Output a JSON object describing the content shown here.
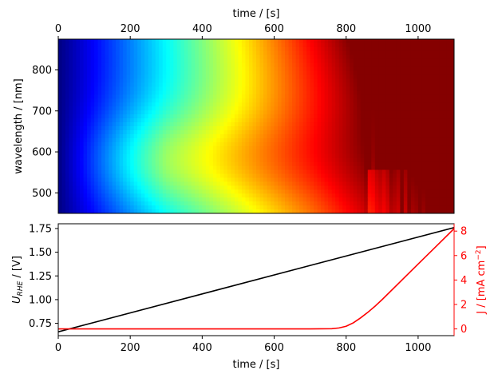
{
  "chart_data": [
    {
      "type": "heatmap",
      "colormap": "jet",
      "title": "",
      "xlabel": "time / [s]",
      "ylabel": "wavelength / [nm]",
      "xlim": [
        0,
        1100
      ],
      "ylim": [
        450,
        875
      ],
      "x_ticks": [
        "0",
        "200",
        "400",
        "600",
        "800",
        "1000"
      ],
      "y_ticks": [
        "500",
        "600",
        "700",
        "800"
      ],
      "x_axis_position": "top",
      "grid": false,
      "description_values": {
        "low_region": "blue at t<100 s",
        "high_region": "dark red at t>950 s, 700-800 nm"
      }
    },
    {
      "type": "line",
      "title": "",
      "xlabel": "time / [s]",
      "ylabel_left": "U_RHE / [V]",
      "ylabel_right": "J / [mA cm^-2]",
      "xlim": [
        0,
        1100
      ],
      "ylim_left": [
        0.62,
        1.8
      ],
      "ylim_right": [
        -0.55,
        8.6
      ],
      "x_ticks": [
        "0",
        "200",
        "400",
        "600",
        "800",
        "1000"
      ],
      "y_ticks_left": [
        "0.75",
        "1.00",
        "1.25",
        "1.50",
        "1.75"
      ],
      "y_ticks_right": [
        "0",
        "2",
        "4",
        "6",
        "8"
      ],
      "grid": false,
      "series": [
        {
          "axis": "left",
          "color": "#000000",
          "x": [
            0,
            1100
          ],
          "y": [
            0.66,
            1.76
          ]
        },
        {
          "axis": "right",
          "color": "#ff0000",
          "x": [
            0,
            200,
            400,
            600,
            700,
            760,
            780,
            800,
            820,
            840,
            860,
            880,
            900,
            950,
            1000,
            1050,
            1100
          ],
          "y": [
            0,
            0,
            0,
            0,
            0,
            0.02,
            0.08,
            0.22,
            0.5,
            0.9,
            1.35,
            1.85,
            2.4,
            3.85,
            5.3,
            6.75,
            8.2
          ]
        }
      ]
    }
  ]
}
